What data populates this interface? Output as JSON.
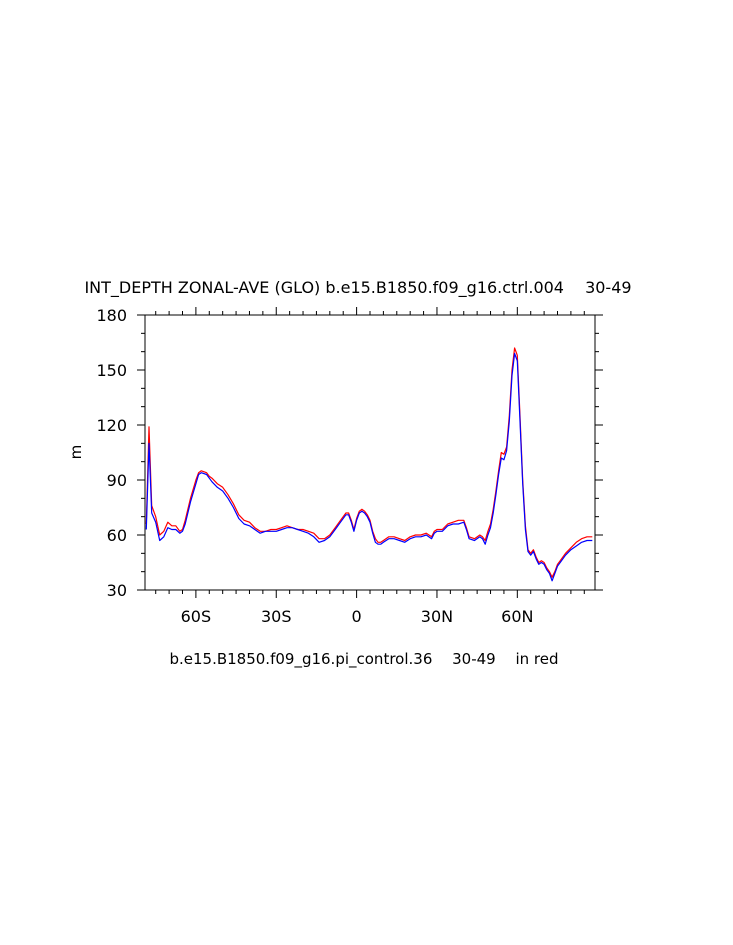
{
  "chart_data": {
    "type": "line",
    "title": "INT_DEPTH ZONAL-AVE (GLO) b.e15.B1850.f09_g16.ctrl.004 　30-49　",
    "ylabel": "m",
    "xlabel": "",
    "subtitle": "b.e15.B1850.f09_g16.pi_control.36 　30-49　 in red",
    "xlim": [
      -79,
      89
    ],
    "ylim": [
      30,
      180
    ],
    "x_ticks": [
      {
        "value": -60,
        "label": "60S"
      },
      {
        "value": -30,
        "label": "30S"
      },
      {
        "value": 0,
        "label": "0"
      },
      {
        "value": 30,
        "label": "30N"
      },
      {
        "value": 60,
        "label": "60N"
      }
    ],
    "y_ticks": [
      30,
      60,
      90,
      120,
      150,
      180
    ],
    "grid": false,
    "series": [
      {
        "color": "#ff0000",
        "points": [
          [
            -78.5,
            66
          ],
          [
            -77.5,
            119
          ],
          [
            -76.5,
            76
          ],
          [
            -75,
            70
          ],
          [
            -73.5,
            60
          ],
          [
            -72,
            62
          ],
          [
            -70.5,
            67
          ],
          [
            -69,
            65
          ],
          [
            -67.5,
            65
          ],
          [
            -66,
            62
          ],
          [
            -65,
            63
          ],
          [
            -64,
            68
          ],
          [
            -62,
            80
          ],
          [
            -60,
            90
          ],
          [
            -59,
            94
          ],
          [
            -58,
            95
          ],
          [
            -56,
            94
          ],
          [
            -55,
            92
          ],
          [
            -54,
            91
          ],
          [
            -52,
            88
          ],
          [
            -50,
            86
          ],
          [
            -48,
            82
          ],
          [
            -46,
            77
          ],
          [
            -44,
            71
          ],
          [
            -42,
            68
          ],
          [
            -40,
            67
          ],
          [
            -38,
            64
          ],
          [
            -36,
            62
          ],
          [
            -34,
            62
          ],
          [
            -32,
            63
          ],
          [
            -30,
            63
          ],
          [
            -28,
            64
          ],
          [
            -26,
            65
          ],
          [
            -24,
            64
          ],
          [
            -22,
            63
          ],
          [
            -20,
            63
          ],
          [
            -18,
            62
          ],
          [
            -16,
            61
          ],
          [
            -14,
            58
          ],
          [
            -12,
            58
          ],
          [
            -10,
            60
          ],
          [
            -8,
            64
          ],
          [
            -6,
            68
          ],
          [
            -4,
            72
          ],
          [
            -3,
            72
          ],
          [
            -2,
            68
          ],
          [
            -1,
            63
          ],
          [
            0,
            69
          ],
          [
            1,
            73
          ],
          [
            2,
            74
          ],
          [
            3,
            73
          ],
          [
            4,
            71
          ],
          [
            5,
            68
          ],
          [
            6,
            62
          ],
          [
            7,
            58
          ],
          [
            8,
            56
          ],
          [
            9,
            56
          ],
          [
            10,
            57
          ],
          [
            12,
            59
          ],
          [
            14,
            59
          ],
          [
            16,
            58
          ],
          [
            18,
            57
          ],
          [
            20,
            59
          ],
          [
            22,
            60
          ],
          [
            24,
            60
          ],
          [
            26,
            61
          ],
          [
            28,
            59
          ],
          [
            29,
            62
          ],
          [
            30,
            63
          ],
          [
            32,
            63
          ],
          [
            34,
            66
          ],
          [
            36,
            67
          ],
          [
            38,
            68
          ],
          [
            40,
            68
          ],
          [
            41,
            64
          ],
          [
            42,
            59
          ],
          [
            44,
            58
          ],
          [
            46,
            60
          ],
          [
            47,
            59
          ],
          [
            48,
            57
          ],
          [
            49,
            62
          ],
          [
            50,
            66
          ],
          [
            51,
            74
          ],
          [
            52,
            84
          ],
          [
            53,
            95
          ],
          [
            54,
            105
          ],
          [
            55,
            104
          ],
          [
            56,
            108
          ],
          [
            57,
            125
          ],
          [
            58,
            150
          ],
          [
            59,
            162
          ],
          [
            60,
            158
          ],
          [
            61,
            125
          ],
          [
            62,
            90
          ],
          [
            63,
            65
          ],
          [
            64,
            52
          ],
          [
            65,
            50
          ],
          [
            66,
            52
          ],
          [
            67,
            48
          ],
          [
            68,
            45
          ],
          [
            69,
            46
          ],
          [
            70,
            45
          ],
          [
            71,
            42
          ],
          [
            72,
            40
          ],
          [
            73,
            37
          ],
          [
            74,
            40
          ],
          [
            75,
            44
          ],
          [
            76,
            46
          ],
          [
            78,
            50
          ],
          [
            80,
            53
          ],
          [
            82,
            56
          ],
          [
            84,
            58
          ],
          [
            86,
            59
          ],
          [
            88,
            59
          ]
        ]
      },
      {
        "color": "#0000ff",
        "points": [
          [
            -78.5,
            63
          ],
          [
            -77.5,
            110
          ],
          [
            -76.5,
            72
          ],
          [
            -75,
            67
          ],
          [
            -73.5,
            57
          ],
          [
            -72,
            59
          ],
          [
            -70.5,
            64
          ],
          [
            -69,
            63
          ],
          [
            -67.5,
            63
          ],
          [
            -66,
            61
          ],
          [
            -65,
            62
          ],
          [
            -64,
            66
          ],
          [
            -62,
            78
          ],
          [
            -60,
            88
          ],
          [
            -59,
            93
          ],
          [
            -58,
            94
          ],
          [
            -56,
            93
          ],
          [
            -55,
            91
          ],
          [
            -54,
            89
          ],
          [
            -52,
            86
          ],
          [
            -50,
            84
          ],
          [
            -48,
            80
          ],
          [
            -46,
            75
          ],
          [
            -44,
            69
          ],
          [
            -42,
            66
          ],
          [
            -40,
            65
          ],
          [
            -38,
            63
          ],
          [
            -36,
            61
          ],
          [
            -34,
            62
          ],
          [
            -32,
            62
          ],
          [
            -30,
            62
          ],
          [
            -28,
            63
          ],
          [
            -26,
            64
          ],
          [
            -24,
            64
          ],
          [
            -22,
            63
          ],
          [
            -20,
            62
          ],
          [
            -18,
            61
          ],
          [
            -16,
            59
          ],
          [
            -14,
            56
          ],
          [
            -12,
            57
          ],
          [
            -10,
            59
          ],
          [
            -8,
            63
          ],
          [
            -6,
            67
          ],
          [
            -4,
            71
          ],
          [
            -3,
            71
          ],
          [
            -2,
            67
          ],
          [
            -1,
            62
          ],
          [
            0,
            68
          ],
          [
            1,
            72
          ],
          [
            2,
            73
          ],
          [
            3,
            72
          ],
          [
            4,
            70
          ],
          [
            5,
            67
          ],
          [
            6,
            61
          ],
          [
            7,
            56
          ],
          [
            8,
            55
          ],
          [
            9,
            55
          ],
          [
            10,
            56
          ],
          [
            12,
            58
          ],
          [
            14,
            58
          ],
          [
            16,
            57
          ],
          [
            18,
            56
          ],
          [
            20,
            58
          ],
          [
            22,
            59
          ],
          [
            24,
            59
          ],
          [
            26,
            60
          ],
          [
            28,
            58
          ],
          [
            29,
            61
          ],
          [
            30,
            62
          ],
          [
            32,
            62
          ],
          [
            34,
            65
          ],
          [
            36,
            66
          ],
          [
            38,
            66
          ],
          [
            40,
            67
          ],
          [
            41,
            63
          ],
          [
            42,
            58
          ],
          [
            44,
            57
          ],
          [
            46,
            59
          ],
          [
            47,
            58
          ],
          [
            48,
            55
          ],
          [
            49,
            60
          ],
          [
            50,
            64
          ],
          [
            51,
            72
          ],
          [
            52,
            82
          ],
          [
            53,
            93
          ],
          [
            54,
            102
          ],
          [
            55,
            101
          ],
          [
            56,
            106
          ],
          [
            57,
            122
          ],
          [
            58,
            147
          ],
          [
            59,
            159
          ],
          [
            60,
            155
          ],
          [
            61,
            122
          ],
          [
            62,
            88
          ],
          [
            63,
            63
          ],
          [
            64,
            51
          ],
          [
            65,
            49
          ],
          [
            66,
            51
          ],
          [
            67,
            47
          ],
          [
            68,
            44
          ],
          [
            69,
            45
          ],
          [
            70,
            44
          ],
          [
            71,
            41
          ],
          [
            72,
            39
          ],
          [
            73,
            35
          ],
          [
            74,
            39
          ],
          [
            75,
            43
          ],
          [
            76,
            45
          ],
          [
            78,
            49
          ],
          [
            80,
            52
          ],
          [
            82,
            54
          ],
          [
            84,
            56
          ],
          [
            86,
            57
          ],
          [
            88,
            57
          ]
        ]
      }
    ]
  }
}
